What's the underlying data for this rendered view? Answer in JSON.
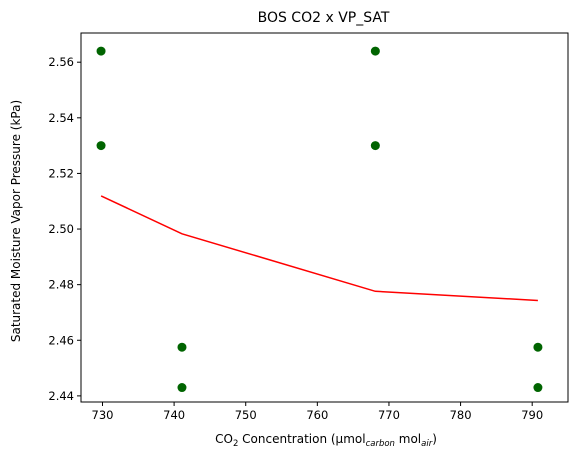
{
  "chart_data": {
    "type": "scatter",
    "title": "BOS CO2 x VP_SAT",
    "xlabel": {
      "prefix": "CO",
      "sub2": "2",
      "mid": " Concentration (μmol",
      "sub_carbon": "carbon",
      "mid2": " mol",
      "sub_air": "air",
      "suffix": ")"
    },
    "ylabel": "Saturated Moisture Vapor Pressure (kPa)",
    "xlim": [
      727,
      795
    ],
    "ylim": [
      2.4378,
      2.5705
    ],
    "xticks": [
      730,
      740,
      750,
      760,
      770,
      780,
      790
    ],
    "yticks": [
      2.44,
      2.46,
      2.48,
      2.5,
      2.52,
      2.54,
      2.56
    ],
    "ytick_labels": [
      "2.44",
      "2.46",
      "2.48",
      "2.50",
      "2.52",
      "2.54",
      "2.56"
    ],
    "grid": false,
    "legend": "none",
    "series": [
      {
        "kind": "points",
        "color": "#006400",
        "points": [
          {
            "x": 729.8,
            "y": 2.564
          },
          {
            "x": 729.8,
            "y": 2.53
          },
          {
            "x": 741.1,
            "y": 2.4575
          },
          {
            "x": 741.1,
            "y": 2.443
          },
          {
            "x": 768.1,
            "y": 2.564
          },
          {
            "x": 768.1,
            "y": 2.53
          },
          {
            "x": 790.8,
            "y": 2.4575
          },
          {
            "x": 790.8,
            "y": 2.443
          }
        ]
      },
      {
        "kind": "line",
        "color": "#ff0000",
        "points": [
          {
            "x": 729.8,
            "y": 2.5119
          },
          {
            "x": 741.1,
            "y": 2.4983
          },
          {
            "x": 768.1,
            "y": 2.4776
          },
          {
            "x": 790.8,
            "y": 2.4743
          }
        ]
      }
    ]
  }
}
